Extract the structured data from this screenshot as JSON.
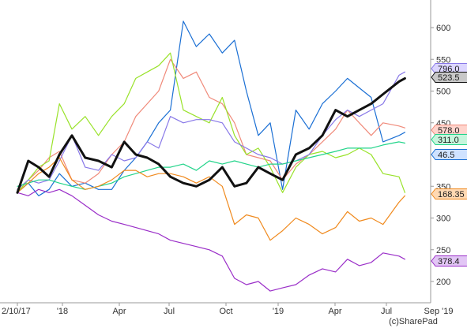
{
  "chart_data": {
    "type": "line",
    "title": "",
    "xlabel": "",
    "ylabel": "",
    "x_tick_labels": [
      "2/10/17",
      "'18",
      "Apr",
      "Jul",
      "Oct",
      "'19",
      "Apr",
      "Jul",
      "Sep '19"
    ],
    "y_ticks": [
      200,
      250,
      300,
      350,
      400,
      450,
      500,
      550,
      600
    ],
    "y_tick_labels": [
      "200",
      "250",
      "300",
      "350",
      "400",
      "450",
      "500",
      "550",
      "600"
    ],
    "ylim": [
      180,
      640
    ],
    "grid": false,
    "credit": "(c)SharePad",
    "series": [
      {
        "color": "#1a6fd4",
        "tag": "46.5",
        "tag_bg": "#cfe2ff",
        "bold": false,
        "points": [
          [
            "2017-10-02",
            340
          ],
          [
            "2017-10-24",
            355
          ],
          [
            "2017-11-14",
            335
          ],
          [
            "2017-12-05",
            345
          ],
          [
            "2017-12-26",
            370
          ],
          [
            "2018-01-16",
            350
          ],
          [
            "2018-02-06",
            355
          ],
          [
            "2018-02-27",
            345
          ],
          [
            "2018-03-20",
            345
          ],
          [
            "2018-04-10",
            375
          ],
          [
            "2018-05-01",
            395
          ],
          [
            "2018-05-22",
            420
          ],
          [
            "2018-06-12",
            450
          ],
          [
            "2018-07-03",
            470
          ],
          [
            "2018-07-24",
            610
          ],
          [
            "2018-08-14",
            570
          ],
          [
            "2018-09-04",
            590
          ],
          [
            "2018-09-25",
            560
          ],
          [
            "2018-10-16",
            580
          ],
          [
            "2018-11-06",
            500
          ],
          [
            "2018-11-27",
            430
          ],
          [
            "2018-12-18",
            450
          ],
          [
            "2019-01-08",
            345
          ],
          [
            "2019-01-29",
            470
          ],
          [
            "2019-02-19",
            440
          ],
          [
            "2019-03-12",
            480
          ],
          [
            "2019-04-02",
            500
          ],
          [
            "2019-04-23",
            520
          ],
          [
            "2019-05-14",
            505
          ],
          [
            "2019-06-04",
            490
          ],
          [
            "2019-06-25",
            420
          ],
          [
            "2019-07-16",
            430
          ],
          [
            "2019-07-23",
            435
          ]
        ]
      },
      {
        "color": "#f08a7a",
        "tag": "578.0",
        "tag_bg": "#ffd4cc",
        "bold": false,
        "points": [
          [
            "2017-10-02",
            345
          ],
          [
            "2017-10-24",
            360
          ],
          [
            "2017-11-14",
            375
          ],
          [
            "2017-12-05",
            395
          ],
          [
            "2017-12-26",
            405
          ],
          [
            "2018-01-16",
            360
          ],
          [
            "2018-02-06",
            355
          ],
          [
            "2018-02-27",
            370
          ],
          [
            "2018-03-20",
            400
          ],
          [
            "2018-04-10",
            420
          ],
          [
            "2018-05-01",
            460
          ],
          [
            "2018-05-22",
            480
          ],
          [
            "2018-06-12",
            500
          ],
          [
            "2018-07-03",
            550
          ],
          [
            "2018-07-24",
            520
          ],
          [
            "2018-08-14",
            530
          ],
          [
            "2018-09-04",
            490
          ],
          [
            "2018-09-25",
            480
          ],
          [
            "2018-10-16",
            450
          ],
          [
            "2018-11-06",
            400
          ],
          [
            "2018-11-27",
            395
          ],
          [
            "2018-12-18",
            390
          ],
          [
            "2019-01-08",
            360
          ],
          [
            "2019-01-29",
            385
          ],
          [
            "2019-02-19",
            400
          ],
          [
            "2019-03-12",
            420
          ],
          [
            "2019-04-02",
            440
          ],
          [
            "2019-04-23",
            470
          ],
          [
            "2019-05-14",
            450
          ],
          [
            "2019-06-04",
            430
          ],
          [
            "2019-06-25",
            450
          ],
          [
            "2019-07-16",
            445
          ],
          [
            "2019-07-23",
            442
          ]
        ]
      },
      {
        "color": "#99e22a",
        "tag": "168.35",
        "tag_bg": "#e2f8b5",
        "bold": false,
        "points": [
          [
            "2017-10-02",
            340
          ],
          [
            "2017-10-24",
            360
          ],
          [
            "2017-11-14",
            380
          ],
          [
            "2017-12-05",
            390
          ],
          [
            "2017-12-26",
            480
          ],
          [
            "2018-01-16",
            440
          ],
          [
            "2018-02-06",
            460
          ],
          [
            "2018-02-27",
            430
          ],
          [
            "2018-03-20",
            460
          ],
          [
            "2018-04-10",
            480
          ],
          [
            "2018-05-01",
            520
          ],
          [
            "2018-05-22",
            530
          ],
          [
            "2018-06-12",
            540
          ],
          [
            "2018-07-03",
            560
          ],
          [
            "2018-07-24",
            470
          ],
          [
            "2018-08-14",
            460
          ],
          [
            "2018-09-04",
            450
          ],
          [
            "2018-09-25",
            490
          ],
          [
            "2018-10-16",
            430
          ],
          [
            "2018-11-06",
            400
          ],
          [
            "2018-11-27",
            410
          ],
          [
            "2018-12-18",
            380
          ],
          [
            "2019-01-08",
            340
          ],
          [
            "2019-01-29",
            380
          ],
          [
            "2019-02-19",
            400
          ],
          [
            "2019-03-12",
            405
          ],
          [
            "2019-04-02",
            395
          ],
          [
            "2019-04-23",
            400
          ],
          [
            "2019-05-14",
            410
          ],
          [
            "2019-06-04",
            400
          ],
          [
            "2019-06-25",
            370
          ],
          [
            "2019-07-16",
            365
          ],
          [
            "2019-07-23",
            340
          ]
        ]
      },
      {
        "color": "#8878e8",
        "tag": "796.0",
        "tag_bg": "#dcd6ff",
        "bold": false,
        "points": [
          [
            "2017-10-02",
            345
          ],
          [
            "2017-10-24",
            360
          ],
          [
            "2017-11-14",
            355
          ],
          [
            "2017-12-05",
            360
          ],
          [
            "2017-12-26",
            390
          ],
          [
            "2018-01-16",
            430
          ],
          [
            "2018-02-06",
            380
          ],
          [
            "2018-02-27",
            375
          ],
          [
            "2018-03-20",
            400
          ],
          [
            "2018-04-10",
            390
          ],
          [
            "2018-05-01",
            395
          ],
          [
            "2018-05-22",
            420
          ],
          [
            "2018-06-12",
            410
          ],
          [
            "2018-07-03",
            460
          ],
          [
            "2018-07-24",
            450
          ],
          [
            "2018-08-14",
            455
          ],
          [
            "2018-09-04",
            455
          ],
          [
            "2018-09-25",
            450
          ],
          [
            "2018-10-16",
            420
          ],
          [
            "2018-11-06",
            410
          ],
          [
            "2018-11-27",
            400
          ],
          [
            "2018-12-18",
            395
          ],
          [
            "2019-01-08",
            385
          ],
          [
            "2019-01-29",
            390
          ],
          [
            "2019-02-19",
            400
          ],
          [
            "2019-03-12",
            430
          ],
          [
            "2019-04-02",
            455
          ],
          [
            "2019-04-23",
            470
          ],
          [
            "2019-05-14",
            460
          ],
          [
            "2019-06-04",
            470
          ],
          [
            "2019-06-25",
            480
          ],
          [
            "2019-07-16",
            525
          ],
          [
            "2019-07-23",
            530
          ]
        ]
      },
      {
        "color": "#22d48a",
        "tag": "311.0",
        "tag_bg": "#c6f5dc",
        "bold": false,
        "points": [
          [
            "2017-10-02",
            350
          ],
          [
            "2017-10-24",
            355
          ],
          [
            "2017-11-14",
            360
          ],
          [
            "2017-12-05",
            360
          ],
          [
            "2017-12-26",
            355
          ],
          [
            "2018-01-16",
            350
          ],
          [
            "2018-02-06",
            345
          ],
          [
            "2018-02-27",
            350
          ],
          [
            "2018-03-20",
            355
          ],
          [
            "2018-04-10",
            365
          ],
          [
            "2018-05-01",
            370
          ],
          [
            "2018-05-22",
            375
          ],
          [
            "2018-06-12",
            380
          ],
          [
            "2018-07-03",
            380
          ],
          [
            "2018-07-24",
            385
          ],
          [
            "2018-08-14",
            375
          ],
          [
            "2018-09-04",
            390
          ],
          [
            "2018-09-25",
            385
          ],
          [
            "2018-10-16",
            390
          ],
          [
            "2018-11-06",
            385
          ],
          [
            "2018-11-27",
            380
          ],
          [
            "2018-12-18",
            385
          ],
          [
            "2019-01-08",
            385
          ],
          [
            "2019-01-29",
            390
          ],
          [
            "2019-02-19",
            395
          ],
          [
            "2019-03-12",
            400
          ],
          [
            "2019-04-02",
            405
          ],
          [
            "2019-04-23",
            410
          ],
          [
            "2019-05-14",
            410
          ],
          [
            "2019-06-04",
            410
          ],
          [
            "2019-06-25",
            415
          ],
          [
            "2019-07-16",
            420
          ],
          [
            "2019-07-23",
            418
          ]
        ]
      },
      {
        "color": "#f08a1e",
        "tag": "168.35",
        "tag_bg": "#ffd9b3",
        "bold": false,
        "points": [
          [
            "2017-10-02",
            340
          ],
          [
            "2017-10-24",
            355
          ],
          [
            "2017-11-14",
            370
          ],
          [
            "2017-12-05",
            380
          ],
          [
            "2017-12-26",
            395
          ],
          [
            "2018-01-16",
            360
          ],
          [
            "2018-02-06",
            345
          ],
          [
            "2018-02-27",
            350
          ],
          [
            "2018-03-20",
            360
          ],
          [
            "2018-04-10",
            375
          ],
          [
            "2018-05-01",
            375
          ],
          [
            "2018-05-22",
            365
          ],
          [
            "2018-06-12",
            370
          ],
          [
            "2018-07-03",
            370
          ],
          [
            "2018-07-24",
            365
          ],
          [
            "2018-08-14",
            355
          ],
          [
            "2018-09-04",
            365
          ],
          [
            "2018-09-25",
            350
          ],
          [
            "2018-10-16",
            290
          ],
          [
            "2018-11-06",
            305
          ],
          [
            "2018-11-27",
            300
          ],
          [
            "2018-12-18",
            265
          ],
          [
            "2019-01-08",
            280
          ],
          [
            "2019-01-29",
            300
          ],
          [
            "2019-02-19",
            290
          ],
          [
            "2019-03-12",
            275
          ],
          [
            "2019-04-02",
            285
          ],
          [
            "2019-04-23",
            310
          ],
          [
            "2019-05-14",
            295
          ],
          [
            "2019-06-04",
            300
          ],
          [
            "2019-06-25",
            290
          ],
          [
            "2019-07-16",
            325
          ],
          [
            "2019-07-23",
            335
          ]
        ]
      },
      {
        "color": "#9a2ec8",
        "tag": "378.4",
        "tag_bg": "#e2c6f5",
        "bold": false,
        "points": [
          [
            "2017-10-02",
            340
          ],
          [
            "2017-10-24",
            335
          ],
          [
            "2017-11-14",
            345
          ],
          [
            "2017-12-05",
            340
          ],
          [
            "2017-12-26",
            345
          ],
          [
            "2018-01-16",
            335
          ],
          [
            "2018-02-06",
            320
          ],
          [
            "2018-02-27",
            305
          ],
          [
            "2018-03-20",
            295
          ],
          [
            "2018-04-10",
            290
          ],
          [
            "2018-05-01",
            285
          ],
          [
            "2018-05-22",
            280
          ],
          [
            "2018-06-12",
            275
          ],
          [
            "2018-07-03",
            265
          ],
          [
            "2018-07-24",
            260
          ],
          [
            "2018-08-14",
            255
          ],
          [
            "2018-09-04",
            250
          ],
          [
            "2018-09-25",
            240
          ],
          [
            "2018-10-16",
            205
          ],
          [
            "2018-11-06",
            195
          ],
          [
            "2018-11-27",
            200
          ],
          [
            "2018-12-18",
            185
          ],
          [
            "2019-01-08",
            190
          ],
          [
            "2019-01-29",
            195
          ],
          [
            "2019-02-19",
            210
          ],
          [
            "2019-03-12",
            220
          ],
          [
            "2019-04-02",
            215
          ],
          [
            "2019-04-23",
            235
          ],
          [
            "2019-05-14",
            225
          ],
          [
            "2019-06-04",
            230
          ],
          [
            "2019-06-25",
            245
          ],
          [
            "2019-07-16",
            240
          ],
          [
            "2019-07-23",
            235
          ]
        ]
      },
      {
        "color": "#111111",
        "tag": "523.5",
        "tag_bg": "#c8c8c8",
        "bold": true,
        "points": [
          [
            "2017-10-02",
            340
          ],
          [
            "2017-10-24",
            390
          ],
          [
            "2017-11-14",
            380
          ],
          [
            "2017-12-05",
            365
          ],
          [
            "2017-12-26",
            400
          ],
          [
            "2018-01-16",
            430
          ],
          [
            "2018-02-06",
            395
          ],
          [
            "2018-02-27",
            390
          ],
          [
            "2018-03-20",
            380
          ],
          [
            "2018-04-10",
            420
          ],
          [
            "2018-05-01",
            400
          ],
          [
            "2018-05-22",
            395
          ],
          [
            "2018-06-12",
            385
          ],
          [
            "2018-07-03",
            365
          ],
          [
            "2018-07-24",
            355
          ],
          [
            "2018-08-14",
            350
          ],
          [
            "2018-09-04",
            360
          ],
          [
            "2018-09-25",
            380
          ],
          [
            "2018-10-16",
            350
          ],
          [
            "2018-11-06",
            355
          ],
          [
            "2018-11-27",
            380
          ],
          [
            "2018-12-18",
            370
          ],
          [
            "2019-01-08",
            360
          ],
          [
            "2019-01-29",
            400
          ],
          [
            "2019-02-19",
            410
          ],
          [
            "2019-03-12",
            430
          ],
          [
            "2019-04-02",
            470
          ],
          [
            "2019-04-23",
            460
          ],
          [
            "2019-05-14",
            470
          ],
          [
            "2019-06-04",
            480
          ],
          [
            "2019-06-25",
            495
          ],
          [
            "2019-07-16",
            515
          ],
          [
            "2019-07-23",
            520
          ]
        ]
      }
    ]
  }
}
